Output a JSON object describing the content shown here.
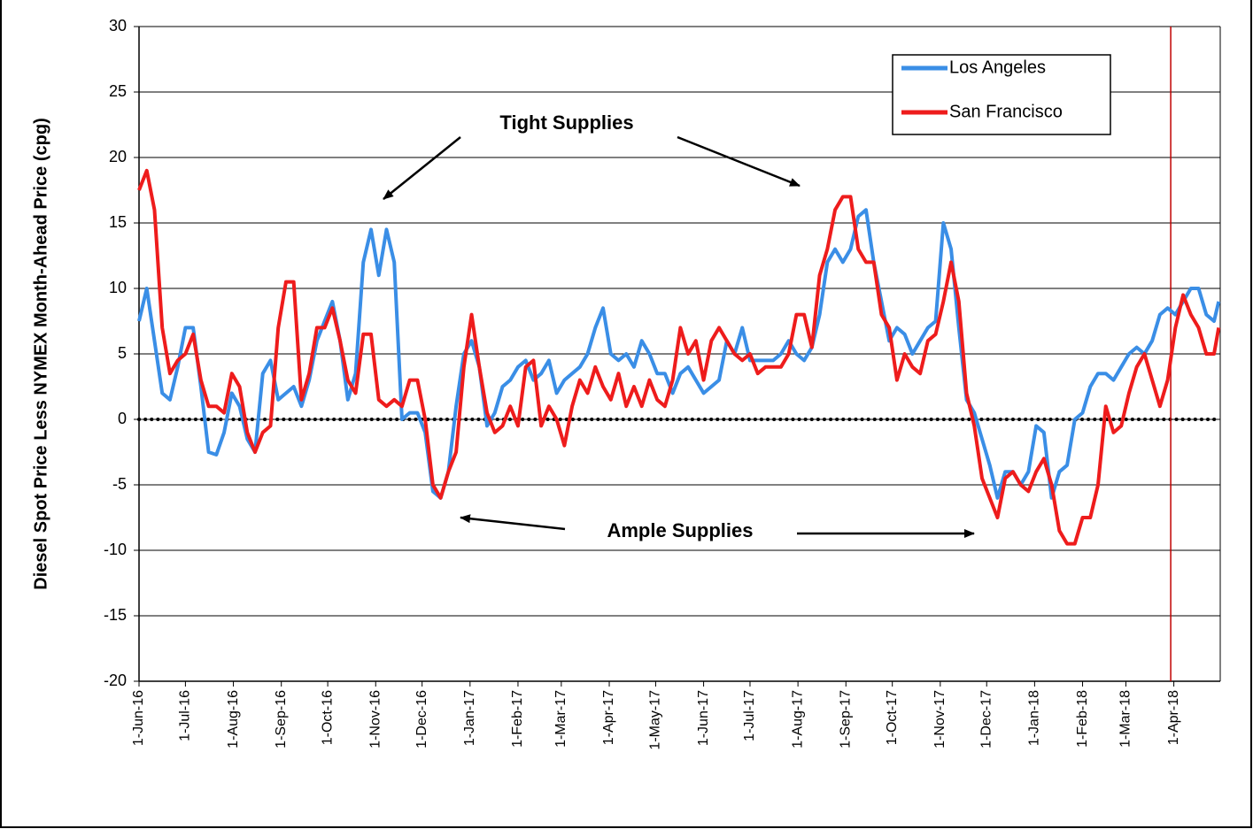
{
  "chart_data": {
    "type": "line",
    "y_label": "Diesel Spot Price Less NYMEX Month-Ahead Price (cpg)",
    "x": [
      0,
      5,
      10,
      15,
      20,
      25,
      30,
      35,
      40,
      45,
      50,
      55,
      60,
      65,
      70,
      75,
      80,
      85,
      90,
      95,
      100,
      105,
      110,
      115,
      120,
      125,
      130,
      135,
      140,
      145,
      150,
      155,
      160,
      165,
      170,
      175,
      180,
      185,
      190,
      195,
      200,
      205,
      210,
      215,
      220,
      225,
      230,
      235,
      240,
      245,
      250,
      255,
      260,
      265,
      270,
      275,
      280,
      285,
      290,
      295,
      300,
      305,
      310,
      315,
      320,
      325,
      330,
      335,
      340,
      345,
      350,
      355,
      360,
      365,
      370,
      375,
      380,
      385,
      390,
      395,
      400,
      405,
      410,
      415,
      420,
      425,
      430,
      435,
      440,
      445,
      450,
      455,
      460,
      465,
      470,
      475,
      480,
      485,
      490,
      495,
      500,
      505,
      510,
      515,
      520,
      525,
      530,
      535,
      540,
      545,
      550,
      555,
      560,
      565,
      570,
      575,
      580,
      585,
      590,
      595,
      600,
      605,
      610,
      615,
      620,
      625,
      630,
      635,
      640,
      645,
      650,
      655,
      660,
      665,
      670,
      675,
      680,
      685,
      690,
      695,
      698
    ],
    "series": [
      {
        "name": "Los Angeles",
        "color": "#3a8ee6",
        "values": [
          7.5,
          10,
          6,
          2,
          1.5,
          4,
          7,
          7,
          2.5,
          -2.5,
          -2.7,
          -1,
          2,
          1,
          -1.5,
          -2.5,
          3.5,
          4.5,
          1.5,
          2,
          2.5,
          1,
          3,
          6,
          7.5,
          9,
          6,
          1.5,
          3.5,
          12,
          14.5,
          11,
          14.5,
          12,
          0,
          0.5,
          0.5,
          -1,
          -5.5,
          -6,
          -4,
          1,
          5,
          6,
          4,
          -0.5,
          0.5,
          2.5,
          3,
          4,
          4.5,
          3,
          3.5,
          4.5,
          2,
          3,
          3.5,
          4,
          5,
          7,
          8.5,
          5,
          4.5,
          5,
          4,
          6,
          5,
          3.5,
          3.5,
          2,
          3.5,
          4,
          3,
          2,
          2.5,
          3,
          6,
          5,
          7,
          4.5,
          4.5,
          4.5,
          4.5,
          5,
          6,
          5,
          4.5,
          5.5,
          8,
          12,
          13,
          12,
          13,
          15.5,
          16,
          12,
          9,
          6,
          7,
          6.5,
          5,
          6,
          7,
          7.5,
          15,
          13,
          7,
          1.5,
          0.5,
          -1.5,
          -3.5,
          -6,
          -4,
          -4,
          -5,
          -4,
          -0.5,
          -1,
          -6,
          -4,
          -3.5,
          0,
          0.5,
          2.5,
          3.5,
          3.5,
          3,
          4,
          5,
          5.5,
          5,
          6,
          8,
          8.5,
          8,
          9,
          10,
          10,
          8,
          7.5,
          9
        ]
      },
      {
        "name": "San Francisco",
        "color": "#ee1c1c",
        "values": [
          17.5,
          19,
          16,
          7,
          3.5,
          4.5,
          5,
          6.5,
          3,
          1,
          1,
          0.5,
          3.5,
          2.5,
          -1,
          -2.5,
          -1,
          -0.5,
          7,
          10.5,
          10.5,
          1.5,
          3.5,
          7,
          7,
          8.5,
          6,
          3,
          2,
          6.5,
          6.5,
          1.5,
          1,
          1.5,
          1,
          3,
          3,
          0,
          -5,
          -6,
          -4,
          -2.5,
          4,
          8,
          4,
          0.5,
          -1,
          -0.5,
          1,
          -0.5,
          4,
          4.5,
          -0.5,
          1,
          0,
          -2,
          1,
          3,
          2,
          4,
          2.5,
          1.5,
          3.5,
          1,
          2.5,
          1,
          3,
          1.5,
          1,
          3,
          7,
          5,
          6,
          3,
          6,
          7,
          6,
          5,
          4.5,
          5,
          3.5,
          4,
          4,
          4,
          5,
          8,
          8,
          5.5,
          11,
          13,
          16,
          17,
          17,
          13,
          12,
          12,
          8,
          7,
          3,
          5,
          4,
          3.5,
          6,
          6.5,
          9,
          12,
          9,
          2,
          -0.5,
          -4.5,
          -6,
          -7.5,
          -4.5,
          -4,
          -5,
          -5.5,
          -4,
          -3,
          -5,
          -8.5,
          -9.5,
          -9.5,
          -7.5,
          -7.5,
          -5,
          1,
          -1,
          -0.5,
          2,
          4,
          5,
          3,
          1,
          3,
          7,
          9.5,
          8,
          7,
          5,
          5,
          7
        ]
      }
    ],
    "xlim": [
      0,
      699
    ],
    "xticks": [
      {
        "value": 0,
        "label": "1-Jun-16"
      },
      {
        "value": 30,
        "label": "1-Jul-16"
      },
      {
        "value": 61,
        "label": "1-Aug-16"
      },
      {
        "value": 92,
        "label": "1-Sep-16"
      },
      {
        "value": 122,
        "label": "1-Oct-16"
      },
      {
        "value": 153,
        "label": "1-Nov-16"
      },
      {
        "value": 183,
        "label": "1-Dec-16"
      },
      {
        "value": 214,
        "label": "1-Jan-17"
      },
      {
        "value": 245,
        "label": "1-Feb-17"
      },
      {
        "value": 273,
        "label": "1-Mar-17"
      },
      {
        "value": 304,
        "label": "1-Apr-17"
      },
      {
        "value": 334,
        "label": "1-May-17"
      },
      {
        "value": 365,
        "label": "1-Jun-17"
      },
      {
        "value": 395,
        "label": "1-Jul-17"
      },
      {
        "value": 426,
        "label": "1-Aug-17"
      },
      {
        "value": 457,
        "label": "1-Sep-17"
      },
      {
        "value": 487,
        "label": "1-Oct-17"
      },
      {
        "value": 518,
        "label": "1-Nov-17"
      },
      {
        "value": 548,
        "label": "1-Dec-17"
      },
      {
        "value": 579,
        "label": "1-Jan-18"
      },
      {
        "value": 610,
        "label": "1-Feb-18"
      },
      {
        "value": 638,
        "label": "1-Mar-18"
      },
      {
        "value": 669,
        "label": "1-Apr-18"
      }
    ],
    "ylim": [
      -20,
      30
    ],
    "yticks": [
      -20,
      -15,
      -10,
      -5,
      0,
      5,
      10,
      15,
      20,
      25,
      30
    ],
    "grid": true,
    "vline": {
      "x": 667,
      "color": "#c00000"
    },
    "legend": "upper right",
    "annotations": [
      "Tight Supplies",
      "Ample Supplies"
    ]
  }
}
